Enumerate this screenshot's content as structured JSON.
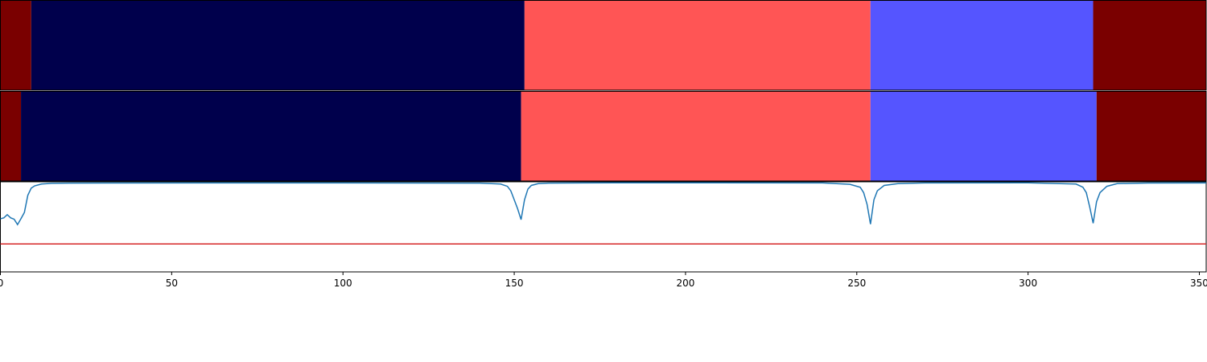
{
  "chart_data": [
    {
      "type": "bar",
      "orientation": "horizontal-segments",
      "xlim": [
        0,
        352
      ],
      "segments": [
        {
          "start": 0,
          "end": 9,
          "color": "#7a0000"
        },
        {
          "start": 9,
          "end": 153,
          "color": "#00004c"
        },
        {
          "start": 153,
          "end": 254,
          "color": "#ff5555"
        },
        {
          "start": 254,
          "end": 319,
          "color": "#5555ff"
        },
        {
          "start": 319,
          "end": 352,
          "color": "#7a0000"
        }
      ]
    },
    {
      "type": "bar",
      "orientation": "horizontal-segments",
      "xlim": [
        0,
        352
      ],
      "segments": [
        {
          "start": 0,
          "end": 6,
          "color": "#7a0000"
        },
        {
          "start": 6,
          "end": 152,
          "color": "#00004c"
        },
        {
          "start": 152,
          "end": 254,
          "color": "#ff5555"
        },
        {
          "start": 254,
          "end": 320,
          "color": "#5555ff"
        },
        {
          "start": 320,
          "end": 352,
          "color": "#7a0000"
        }
      ]
    },
    {
      "type": "line",
      "xlim": [
        0,
        352
      ],
      "ylim": [
        0,
        1
      ],
      "grid": false,
      "xticks": [
        0,
        50,
        100,
        150,
        200,
        250,
        300,
        350
      ],
      "xtick_labels": [
        "0",
        "50",
        "100",
        "150",
        "200",
        "250",
        "300",
        "350"
      ],
      "series": [
        {
          "color": "#1f77b4",
          "x": [
            0,
            1,
            2,
            3,
            4,
            5,
            6,
            7,
            8,
            9,
            10,
            12,
            15,
            20,
            30,
            60,
            100,
            140,
            146,
            148,
            149,
            150,
            151,
            152,
            153,
            154,
            155,
            157,
            160,
            170,
            200,
            240,
            248,
            251,
            252,
            253,
            254,
            255,
            256,
            258,
            262,
            270,
            300,
            314,
            316,
            317,
            318,
            319,
            320,
            321,
            323,
            326,
            335,
            352
          ],
          "y": [
            0.59,
            0.6,
            0.635,
            0.6,
            0.585,
            0.525,
            0.59,
            0.66,
            0.85,
            0.93,
            0.955,
            0.975,
            0.983,
            0.985,
            0.987,
            0.988,
            0.988,
            0.985,
            0.975,
            0.95,
            0.9,
            0.8,
            0.7,
            0.58,
            0.8,
            0.92,
            0.96,
            0.98,
            0.985,
            0.988,
            0.989,
            0.988,
            0.972,
            0.94,
            0.88,
            0.75,
            0.53,
            0.8,
            0.9,
            0.96,
            0.98,
            0.988,
            0.989,
            0.975,
            0.94,
            0.88,
            0.72,
            0.54,
            0.78,
            0.88,
            0.95,
            0.98,
            0.987,
            0.988
          ]
        },
        {
          "color": "#d62728",
          "x": [
            0,
            352
          ],
          "y": [
            0.31,
            0.31
          ]
        }
      ]
    }
  ]
}
